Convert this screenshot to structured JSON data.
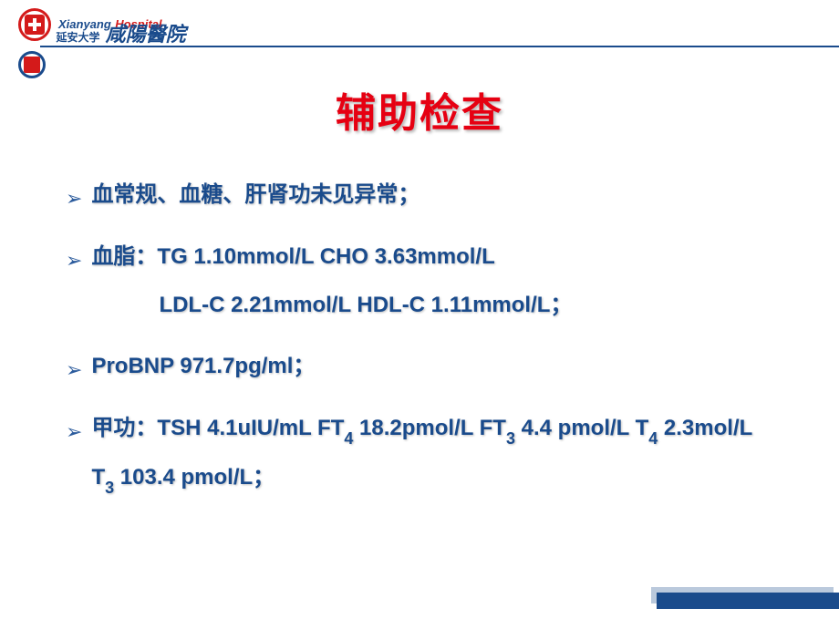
{
  "header": {
    "english_prefix": "Xianyang",
    "english_suffix": "Hospital",
    "chinese_sub": "延安大学",
    "chinese_main": "咸陽醫院"
  },
  "title": "辅助检查",
  "bullets": [
    {
      "line1": "血常规、血糖、肝肾功未见异常；"
    },
    {
      "line1": "血脂：TG 1.10mmol/L  CHO 3.63mmol/L",
      "line2": "LDL-C 2.21mmol/L  HDL-C 1.11mmol/L；"
    },
    {
      "line1": "ProBNP  971.7pg/ml；"
    },
    {
      "line1_html": "甲功：TSH  4.1uIU/mL   FT<span class='sub'>4</span> 18.2pmol/L    FT<span class='sub'>3</span>  4.4 pmol/L   T<span class='sub'>4</span> 2.3mol/L    T<span class='sub'>3</span>  103.4 pmol/L；"
    }
  ],
  "colors": {
    "title_color": "#e60012",
    "text_color": "#1a4b8c",
    "accent_red": "#d41a1a",
    "line_color": "#1a4b8c",
    "background": "#ffffff"
  }
}
